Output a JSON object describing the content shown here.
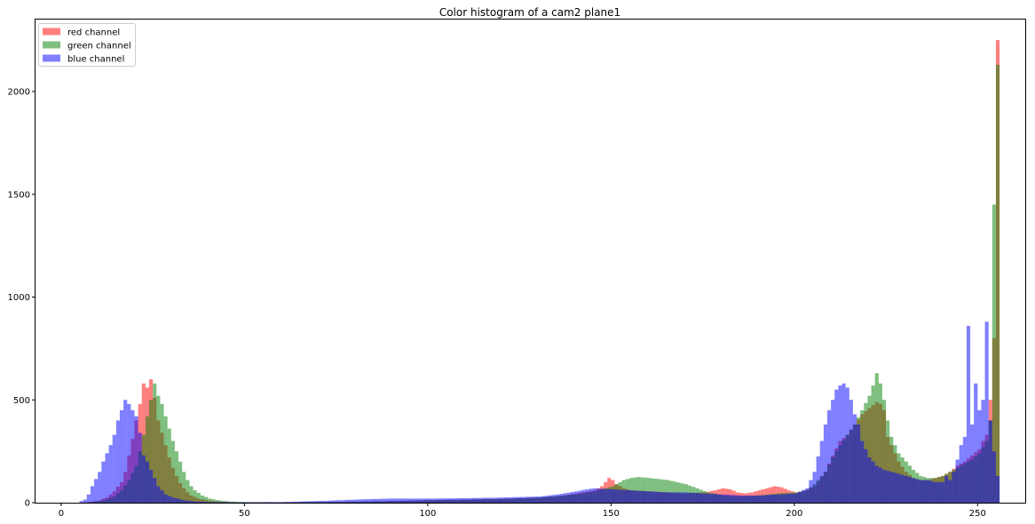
{
  "chart_data": {
    "type": "bar",
    "title": "Color histogram of a cam2 plane1",
    "xlabel": "",
    "ylabel": "",
    "xlim": [
      -7,
      263
    ],
    "ylim": [
      0,
      2350
    ],
    "x_ticks": [
      0,
      50,
      100,
      150,
      200,
      250
    ],
    "y_ticks": [
      0,
      500,
      1000,
      1500,
      2000
    ],
    "grid": false,
    "legend_position": "top-left",
    "bin_width": 1,
    "anchors": {
      "red": [
        [
          0,
          0
        ],
        [
          4,
          0
        ],
        [
          6,
          2
        ],
        [
          8,
          5
        ],
        [
          10,
          12
        ],
        [
          12,
          25
        ],
        [
          14,
          55
        ],
        [
          16,
          100
        ],
        [
          17,
          150
        ],
        [
          18,
          230
        ],
        [
          19,
          310
        ],
        [
          20,
          400
        ],
        [
          21,
          480
        ],
        [
          22,
          580
        ],
        [
          23,
          560
        ],
        [
          24,
          600
        ],
        [
          25,
          510
        ],
        [
          26,
          400
        ],
        [
          27,
          340
        ],
        [
          28,
          280
        ],
        [
          29,
          220
        ],
        [
          30,
          170
        ],
        [
          31,
          130
        ],
        [
          32,
          95
        ],
        [
          33,
          70
        ],
        [
          34,
          50
        ],
        [
          35,
          35
        ],
        [
          37,
          20
        ],
        [
          39,
          12
        ],
        [
          42,
          6
        ],
        [
          45,
          3
        ],
        [
          50,
          2
        ],
        [
          60,
          2
        ],
        [
          70,
          3
        ],
        [
          80,
          5
        ],
        [
          90,
          8
        ],
        [
          100,
          12
        ],
        [
          110,
          15
        ],
        [
          120,
          18
        ],
        [
          130,
          25
        ],
        [
          135,
          30
        ],
        [
          140,
          45
        ],
        [
          145,
          60
        ],
        [
          147,
          80
        ],
        [
          148,
          100
        ],
        [
          149,
          120
        ],
        [
          150,
          110
        ],
        [
          151,
          90
        ],
        [
          153,
          70
        ],
        [
          155,
          60
        ],
        [
          160,
          55
        ],
        [
          165,
          50
        ],
        [
          170,
          45
        ],
        [
          175,
          50
        ],
        [
          178,
          60
        ],
        [
          180,
          70
        ],
        [
          182,
          65
        ],
        [
          184,
          50
        ],
        [
          186,
          45
        ],
        [
          188,
          50
        ],
        [
          190,
          60
        ],
        [
          192,
          70
        ],
        [
          194,
          80
        ],
        [
          196,
          75
        ],
        [
          198,
          60
        ],
        [
          200,
          50
        ],
        [
          202,
          55
        ],
        [
          205,
          80
        ],
        [
          208,
          150
        ],
        [
          210,
          230
        ],
        [
          212,
          300
        ],
        [
          214,
          330
        ],
        [
          216,
          380
        ],
        [
          218,
          430
        ],
        [
          220,
          460
        ],
        [
          222,
          490
        ],
        [
          223,
          480
        ],
        [
          224,
          450
        ],
        [
          225,
          320
        ],
        [
          226,
          280
        ],
        [
          228,
          200
        ],
        [
          230,
          150
        ],
        [
          232,
          120
        ],
        [
          234,
          110
        ],
        [
          236,
          110
        ],
        [
          238,
          120
        ],
        [
          240,
          130
        ],
        [
          242,
          150
        ],
        [
          244,
          180
        ],
        [
          246,
          200
        ],
        [
          248,
          230
        ],
        [
          250,
          260
        ],
        [
          251,
          300
        ],
        [
          252,
          330
        ],
        [
          253,
          500
        ],
        [
          254,
          800
        ],
        [
          255,
          2250
        ]
      ],
      "green": [
        [
          0,
          0
        ],
        [
          6,
          0
        ],
        [
          8,
          3
        ],
        [
          10,
          8
        ],
        [
          12,
          15
        ],
        [
          14,
          30
        ],
        [
          16,
          60
        ],
        [
          18,
          110
        ],
        [
          20,
          180
        ],
        [
          21,
          250
        ],
        [
          22,
          330
        ],
        [
          23,
          420
        ],
        [
          24,
          500
        ],
        [
          25,
          580
        ],
        [
          26,
          520
        ],
        [
          27,
          480
        ],
        [
          28,
          420
        ],
        [
          29,
          360
        ],
        [
          30,
          300
        ],
        [
          31,
          250
        ],
        [
          32,
          200
        ],
        [
          33,
          150
        ],
        [
          34,
          110
        ],
        [
          35,
          80
        ],
        [
          36,
          60
        ],
        [
          38,
          35
        ],
        [
          40,
          20
        ],
        [
          43,
          10
        ],
        [
          46,
          5
        ],
        [
          50,
          3
        ],
        [
          60,
          2
        ],
        [
          70,
          3
        ],
        [
          80,
          5
        ],
        [
          90,
          8
        ],
        [
          100,
          12
        ],
        [
          110,
          15
        ],
        [
          120,
          18
        ],
        [
          130,
          25
        ],
        [
          140,
          40
        ],
        [
          145,
          55
        ],
        [
          150,
          80
        ],
        [
          153,
          110
        ],
        [
          155,
          120
        ],
        [
          157,
          125
        ],
        [
          160,
          120
        ],
        [
          165,
          110
        ],
        [
          170,
          90
        ],
        [
          173,
          70
        ],
        [
          176,
          50
        ],
        [
          180,
          35
        ],
        [
          185,
          30
        ],
        [
          190,
          35
        ],
        [
          195,
          45
        ],
        [
          200,
          50
        ],
        [
          203,
          60
        ],
        [
          205,
          90
        ],
        [
          208,
          150
        ],
        [
          210,
          220
        ],
        [
          212,
          280
        ],
        [
          214,
          330
        ],
        [
          216,
          380
        ],
        [
          218,
          450
        ],
        [
          220,
          520
        ],
        [
          221,
          570
        ],
        [
          222,
          630
        ],
        [
          223,
          580
        ],
        [
          224,
          500
        ],
        [
          225,
          400
        ],
        [
          226,
          320
        ],
        [
          227,
          280
        ],
        [
          228,
          240
        ],
        [
          230,
          200
        ],
        [
          232,
          160
        ],
        [
          234,
          130
        ],
        [
          236,
          120
        ],
        [
          238,
          120
        ],
        [
          240,
          130
        ],
        [
          242,
          150
        ],
        [
          244,
          170
        ],
        [
          246,
          190
        ],
        [
          248,
          210
        ],
        [
          250,
          240
        ],
        [
          252,
          300
        ],
        [
          253,
          400
        ],
        [
          254,
          1450
        ],
        [
          255,
          2130
        ]
      ],
      "blue": [
        [
          0,
          0
        ],
        [
          4,
          0
        ],
        [
          6,
          15
        ],
        [
          7,
          40
        ],
        [
          8,
          80
        ],
        [
          10,
          150
        ],
        [
          11,
          200
        ],
        [
          12,
          240
        ],
        [
          13,
          280
        ],
        [
          14,
          330
        ],
        [
          15,
          400
        ],
        [
          16,
          450
        ],
        [
          17,
          500
        ],
        [
          18,
          480
        ],
        [
          19,
          450
        ],
        [
          20,
          420
        ],
        [
          21,
          340
        ],
        [
          22,
          230
        ],
        [
          23,
          200
        ],
        [
          24,
          160
        ],
        [
          25,
          120
        ],
        [
          26,
          80
        ],
        [
          27,
          60
        ],
        [
          28,
          40
        ],
        [
          30,
          25
        ],
        [
          33,
          12
        ],
        [
          36,
          6
        ],
        [
          40,
          3
        ],
        [
          50,
          2
        ],
        [
          60,
          3
        ],
        [
          70,
          8
        ],
        [
          80,
          15
        ],
        [
          90,
          20
        ],
        [
          100,
          20
        ],
        [
          110,
          22
        ],
        [
          120,
          25
        ],
        [
          130,
          30
        ],
        [
          135,
          40
        ],
        [
          140,
          55
        ],
        [
          143,
          65
        ],
        [
          145,
          70
        ],
        [
          150,
          65
        ],
        [
          155,
          60
        ],
        [
          160,
          55
        ],
        [
          165,
          50
        ],
        [
          170,
          50
        ],
        [
          175,
          45
        ],
        [
          180,
          40
        ],
        [
          185,
          35
        ],
        [
          190,
          35
        ],
        [
          195,
          40
        ],
        [
          200,
          45
        ],
        [
          203,
          70
        ],
        [
          205,
          150
        ],
        [
          207,
          300
        ],
        [
          208,
          380
        ],
        [
          209,
          450
        ],
        [
          210,
          500
        ],
        [
          211,
          550
        ],
        [
          212,
          570
        ],
        [
          213,
          580
        ],
        [
          214,
          560
        ],
        [
          215,
          500
        ],
        [
          216,
          430
        ],
        [
          217,
          380
        ],
        [
          218,
          300
        ],
        [
          220,
          220
        ],
        [
          222,
          180
        ],
        [
          224,
          160
        ],
        [
          226,
          150
        ],
        [
          228,
          140
        ],
        [
          230,
          130
        ],
        [
          232,
          120
        ],
        [
          234,
          110
        ],
        [
          236,
          110
        ],
        [
          238,
          100
        ],
        [
          240,
          100
        ],
        [
          241,
          130
        ],
        [
          242,
          110
        ],
        [
          243,
          150
        ],
        [
          244,
          210
        ],
        [
          245,
          280
        ],
        [
          246,
          320
        ],
        [
          247,
          860
        ],
        [
          248,
          380
        ],
        [
          249,
          580
        ],
        [
          250,
          450
        ],
        [
          251,
          500
        ],
        [
          252,
          880
        ],
        [
          253,
          400
        ],
        [
          254,
          250
        ],
        [
          255,
          130
        ]
      ]
    },
    "series": [
      {
        "name": "red channel",
        "color": "#ff0000"
      },
      {
        "name": "green channel",
        "color": "#008000"
      },
      {
        "name": "blue channel",
        "color": "#0000ff"
      }
    ],
    "alpha": 0.5
  }
}
